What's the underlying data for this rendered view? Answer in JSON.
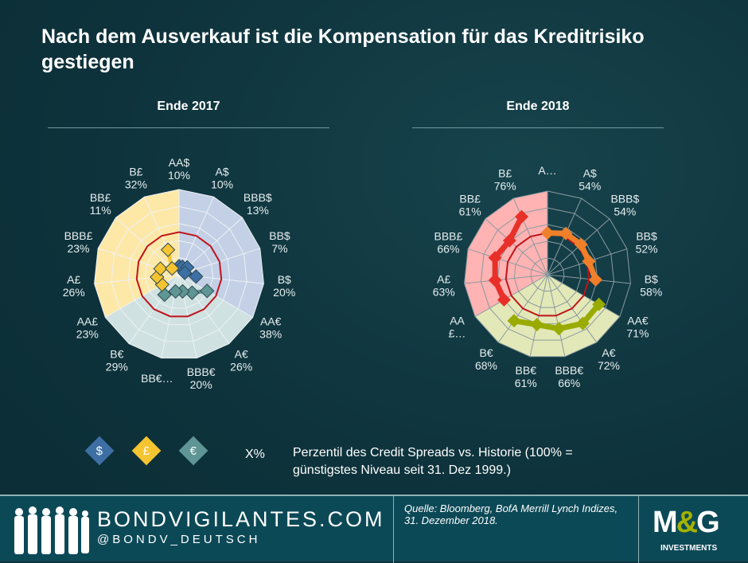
{
  "title": "Nach dem Ausverkauf ist die Kompensation für das Kreditrisiko gestiegen",
  "chart_data": [
    {
      "type": "radar",
      "title": "Ende 2017",
      "categories": [
        "AA$",
        "A$",
        "BBB$",
        "BB$",
        "B$",
        "AA€",
        "A€",
        "BBB€",
        "BB€",
        "B€",
        "AA£",
        "A£",
        "BBB£",
        "BB£",
        "B£"
      ],
      "tick_labels": [
        "AA$\n10%",
        "A$\n10%",
        "BBB$\n13%",
        "BB$\n7%",
        "B$\n20%",
        "AA€\n38%",
        "A€\n26%",
        "BBB€\n20%",
        "BB€…",
        "B€\n29%",
        "AA£\n23%",
        "A£\n26%",
        "BBB£\n23%",
        "BB£\n11%",
        "B£\n32%"
      ],
      "values": [
        10,
        10,
        13,
        7,
        20,
        38,
        26,
        20,
        20,
        29,
        23,
        26,
        23,
        11,
        32
      ],
      "rlim": [
        0,
        100
      ],
      "reference_ring": 50,
      "colors": {
        "usd": "#3d6fa5",
        "gbp": "#f5c431",
        "eur": "#5f9594",
        "usd_area": "#c3d0e6",
        "gbp_area": "#fde8a8",
        "eur_area": "#cfe1e1",
        "ring": "#c0141b"
      },
      "shaded": {
        "usd": true,
        "gbp": true,
        "eur": true
      }
    },
    {
      "type": "radar",
      "title": "Ende 2018",
      "categories": [
        "AA$",
        "A$",
        "BBB$",
        "BB$",
        "B$",
        "AA€",
        "A€",
        "BBB€",
        "BB€",
        "B€",
        "AA£",
        "A£",
        "BBB£",
        "BB£",
        "B£"
      ],
      "tick_labels": [
        "A…",
        "A$\n54%",
        "BBB$\n54%",
        "BB$\n52%",
        "B$\n58%",
        "AA€\n71%",
        "A€\n72%",
        "BBB€\n66%",
        "BB€\n61%",
        "B€\n68%",
        "AA\n£…",
        "A£\n63%",
        "BBB£\n66%",
        "BB£\n61%",
        "B£\n76%"
      ],
      "values": [
        50,
        54,
        54,
        52,
        58,
        71,
        72,
        66,
        61,
        68,
        60,
        63,
        66,
        61,
        76
      ],
      "rlim": [
        0,
        100
      ],
      "reference_ring": 50,
      "colors": {
        "usd": "#f07f2a",
        "gbp": "#e8302a",
        "eur": "#9aab00",
        "usd_area": "none",
        "gbp_area": "#ffb3b3",
        "eur_area": "#e3e8b8",
        "ring": "#c0141b"
      },
      "shaded": {
        "usd": false,
        "gbp": true,
        "eur": true
      }
    }
  ],
  "legend": {
    "usd_symbol": "$",
    "gbp_symbol": "£",
    "eur_symbol": "€",
    "xp": "X%",
    "text": "Perzentil des Credit Spreads vs. Historie (100% = günstigstes Niveau seit 31. Dez 1999.)"
  },
  "footer": {
    "site": "BONDVIGILANTES.COM",
    "twitter": "@BONDV_DEUTSCH",
    "source": "Quelle: Bloomberg, BofA Merrill Lynch Indizes, 31. Dezember 2018.",
    "logo": "M&G",
    "logo_sub": "INVESTMENTS"
  }
}
